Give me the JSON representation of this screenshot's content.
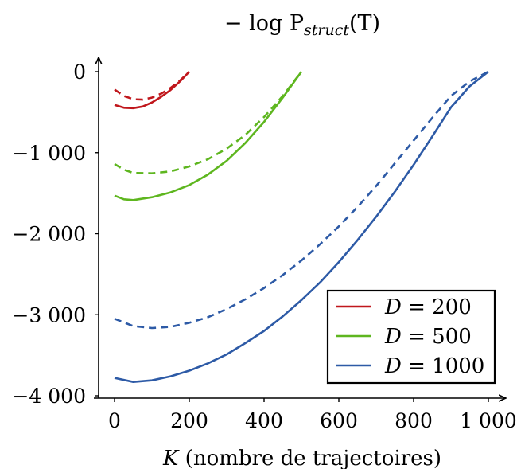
{
  "chart_data": {
    "type": "line",
    "title": "− log P",
    "title_subscript": "struct",
    "title_suffix": "(T)",
    "xlabel_var": "K",
    "xlabel": " (nombre de trajectoires)",
    "xlim": [
      0,
      1000
    ],
    "ylim": [
      -4000,
      0
    ],
    "x_ticks": [
      0,
      200,
      400,
      600,
      800,
      1000
    ],
    "x_tick_labels": [
      "0",
      "200",
      "400",
      "600",
      "800",
      "1 000"
    ],
    "y_ticks": [
      0,
      -1000,
      -2000,
      -3000,
      -4000
    ],
    "y_tick_labels": [
      "0",
      "−1 000",
      "−2 000",
      "−3 000",
      "−4 000"
    ],
    "grid": false,
    "legend_position": "bottom-right",
    "series": [
      {
        "name": "D = 200",
        "color": "#c0171c",
        "style": "solid",
        "points": [
          [
            0,
            -410
          ],
          [
            25,
            -445
          ],
          [
            50,
            -450
          ],
          [
            75,
            -430
          ],
          [
            100,
            -380
          ],
          [
            125,
            -310
          ],
          [
            150,
            -225
          ],
          [
            175,
            -120
          ],
          [
            200,
            0
          ]
        ]
      },
      {
        "name": "D = 200",
        "color": "#c0171c",
        "style": "dashed",
        "points": [
          [
            0,
            -220
          ],
          [
            25,
            -300
          ],
          [
            50,
            -340
          ],
          [
            75,
            -345
          ],
          [
            100,
            -320
          ],
          [
            125,
            -270
          ],
          [
            150,
            -200
          ],
          [
            175,
            -110
          ],
          [
            200,
            0
          ]
        ]
      },
      {
        "name": "D = 500",
        "color": "#5eb61f",
        "style": "solid",
        "points": [
          [
            0,
            -1530
          ],
          [
            25,
            -1575
          ],
          [
            50,
            -1585
          ],
          [
            100,
            -1550
          ],
          [
            150,
            -1490
          ],
          [
            200,
            -1400
          ],
          [
            250,
            -1270
          ],
          [
            300,
            -1100
          ],
          [
            350,
            -880
          ],
          [
            400,
            -620
          ],
          [
            450,
            -320
          ],
          [
            500,
            0
          ]
        ]
      },
      {
        "name": "D = 500",
        "color": "#5eb61f",
        "style": "dashed",
        "points": [
          [
            0,
            -1140
          ],
          [
            25,
            -1210
          ],
          [
            50,
            -1250
          ],
          [
            100,
            -1255
          ],
          [
            150,
            -1230
          ],
          [
            200,
            -1170
          ],
          [
            250,
            -1080
          ],
          [
            300,
            -950
          ],
          [
            350,
            -780
          ],
          [
            400,
            -560
          ],
          [
            450,
            -300
          ],
          [
            500,
            0
          ]
        ]
      },
      {
        "name": "D = 1000",
        "color": "#2d5aa6",
        "style": "solid",
        "points": [
          [
            0,
            -3780
          ],
          [
            50,
            -3830
          ],
          [
            100,
            -3810
          ],
          [
            150,
            -3760
          ],
          [
            200,
            -3690
          ],
          [
            250,
            -3600
          ],
          [
            300,
            -3490
          ],
          [
            350,
            -3350
          ],
          [
            400,
            -3200
          ],
          [
            450,
            -3020
          ],
          [
            500,
            -2820
          ],
          [
            550,
            -2600
          ],
          [
            600,
            -2350
          ],
          [
            650,
            -2080
          ],
          [
            700,
            -1790
          ],
          [
            750,
            -1480
          ],
          [
            800,
            -1150
          ],
          [
            850,
            -800
          ],
          [
            900,
            -440
          ],
          [
            950,
            -180
          ],
          [
            1000,
            0
          ]
        ]
      },
      {
        "name": "D = 1000",
        "color": "#2d5aa6",
        "style": "dashed",
        "points": [
          [
            0,
            -3050
          ],
          [
            50,
            -3140
          ],
          [
            100,
            -3165
          ],
          [
            150,
            -3150
          ],
          [
            200,
            -3100
          ],
          [
            250,
            -3030
          ],
          [
            300,
            -2930
          ],
          [
            350,
            -2810
          ],
          [
            400,
            -2670
          ],
          [
            450,
            -2510
          ],
          [
            500,
            -2330
          ],
          [
            550,
            -2130
          ],
          [
            600,
            -1910
          ],
          [
            650,
            -1670
          ],
          [
            700,
            -1410
          ],
          [
            750,
            -1130
          ],
          [
            800,
            -850
          ],
          [
            850,
            -570
          ],
          [
            900,
            -300
          ],
          [
            950,
            -120
          ],
          [
            1000,
            0
          ]
        ]
      }
    ],
    "legend": [
      {
        "var": "D",
        "value": "= 200",
        "color": "#c0171c"
      },
      {
        "var": "D",
        "value": "= 500",
        "color": "#5eb61f"
      },
      {
        "var": "D",
        "value": "= 1000",
        "color": "#2d5aa6"
      }
    ]
  }
}
